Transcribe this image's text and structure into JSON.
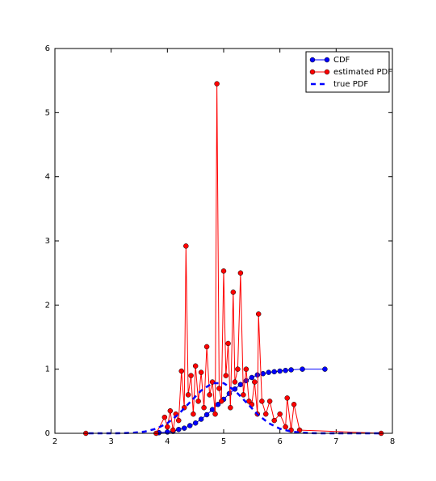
{
  "chart_data": {
    "type": "line",
    "xlim": [
      2,
      8
    ],
    "ylim": [
      0,
      6
    ],
    "xticks": [
      2,
      3,
      4,
      5,
      6,
      7,
      8
    ],
    "yticks": [
      0,
      1,
      2,
      3,
      4,
      5,
      6
    ],
    "legend": "upper right",
    "series": [
      {
        "name": "CDF",
        "color": "#0000ff",
        "linestyle": "solid",
        "marker": "o",
        "x": [
          3.85,
          4.0,
          4.1,
          4.2,
          4.3,
          4.4,
          4.5,
          4.6,
          4.7,
          4.8,
          4.9,
          5.0,
          5.1,
          5.2,
          5.3,
          5.4,
          5.5,
          5.6,
          5.7,
          5.8,
          5.9,
          6.0,
          6.1,
          6.2,
          6.4,
          6.8
        ],
        "values": [
          0.01,
          0.02,
          0.03,
          0.06,
          0.08,
          0.12,
          0.16,
          0.22,
          0.29,
          0.37,
          0.45,
          0.53,
          0.62,
          0.69,
          0.76,
          0.82,
          0.87,
          0.91,
          0.93,
          0.95,
          0.96,
          0.97,
          0.98,
          0.99,
          1.0,
          1.0
        ]
      },
      {
        "name": "estimated PDF",
        "color": "#ff0000",
        "linestyle": "solid",
        "marker": "o",
        "x": [
          2.55,
          3.8,
          3.95,
          4.0,
          4.05,
          4.1,
          4.15,
          4.2,
          4.25,
          4.3,
          4.33,
          4.37,
          4.42,
          4.46,
          4.5,
          4.55,
          4.6,
          4.65,
          4.7,
          4.75,
          4.8,
          4.85,
          4.88,
          4.92,
          4.96,
          5.0,
          5.04,
          5.08,
          5.12,
          5.17,
          5.2,
          5.25,
          5.3,
          5.35,
          5.4,
          5.45,
          5.5,
          5.55,
          5.6,
          5.62,
          5.68,
          5.75,
          5.82,
          5.9,
          6.0,
          6.1,
          6.13,
          6.2,
          6.25,
          6.35,
          7.8
        ],
        "values": [
          0,
          0,
          0.25,
          0.1,
          0.35,
          0.05,
          0.3,
          0.2,
          0.97,
          0.4,
          2.92,
          0.6,
          0.9,
          0.3,
          1.05,
          0.5,
          0.95,
          0.4,
          1.35,
          0.6,
          0.8,
          0.3,
          5.45,
          0.7,
          0.5,
          2.53,
          0.9,
          1.4,
          0.4,
          2.2,
          0.8,
          1.0,
          2.5,
          0.6,
          1.0,
          0.5,
          0.45,
          0.8,
          0.3,
          1.86,
          0.5,
          0.3,
          0.5,
          0.2,
          0.3,
          0.1,
          0.55,
          0.05,
          0.45,
          0.05,
          0
        ]
      },
      {
        "name": "true PDF",
        "color": "#0000ff",
        "linestyle": "dashed",
        "marker": "none",
        "x": [
          2.6,
          2.8,
          3.0,
          3.2,
          3.4,
          3.6,
          3.8,
          4.0,
          4.2,
          4.4,
          4.6,
          4.8,
          5.0,
          5.2,
          5.4,
          5.6,
          5.8,
          6.0,
          6.2,
          6.4,
          6.6,
          6.8,
          7.0,
          7.2,
          7.4,
          7.6,
          7.8
        ],
        "values": [
          0,
          0,
          0,
          0.002,
          0.009,
          0.027,
          0.071,
          0.158,
          0.299,
          0.484,
          0.666,
          0.782,
          0.782,
          0.666,
          0.484,
          0.299,
          0.158,
          0.071,
          0.027,
          0.009,
          0.002,
          0,
          0,
          0,
          0,
          0,
          0
        ]
      }
    ]
  }
}
